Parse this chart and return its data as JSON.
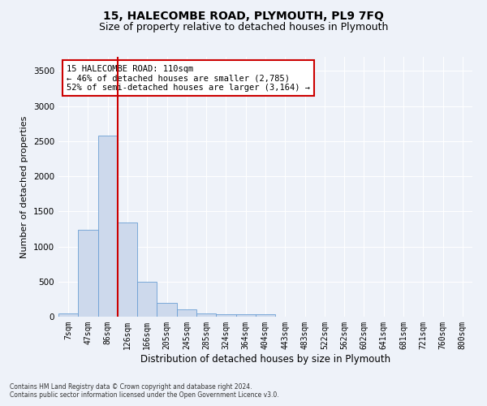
{
  "title": "15, HALECOMBE ROAD, PLYMOUTH, PL9 7FQ",
  "subtitle": "Size of property relative to detached houses in Plymouth",
  "xlabel": "Distribution of detached houses by size in Plymouth",
  "ylabel": "Number of detached properties",
  "bar_labels": [
    "7sqm",
    "47sqm",
    "86sqm",
    "126sqm",
    "166sqm",
    "205sqm",
    "245sqm",
    "285sqm",
    "324sqm",
    "364sqm",
    "404sqm",
    "443sqm",
    "483sqm",
    "522sqm",
    "562sqm",
    "602sqm",
    "641sqm",
    "681sqm",
    "721sqm",
    "760sqm",
    "800sqm"
  ],
  "bar_values": [
    50,
    1240,
    2580,
    1340,
    500,
    195,
    105,
    45,
    40,
    40,
    35,
    0,
    0,
    0,
    0,
    0,
    0,
    0,
    0,
    0,
    0
  ],
  "bar_color": "#cdd9ec",
  "bar_edge_color": "#6b9fd4",
  "vline_color": "#cc0000",
  "vline_pos": 2.5,
  "annotation_text": "15 HALECOMBE ROAD: 110sqm\n← 46% of detached houses are smaller (2,785)\n52% of semi-detached houses are larger (3,164) →",
  "annotation_box_color": "#cc0000",
  "ylim": [
    0,
    3700
  ],
  "yticks": [
    0,
    500,
    1000,
    1500,
    2000,
    2500,
    3000,
    3500
  ],
  "footnote1": "Contains HM Land Registry data © Crown copyright and database right 2024.",
  "footnote2": "Contains public sector information licensed under the Open Government Licence v3.0.",
  "background_color": "#eef2f9",
  "grid_color": "#ffffff",
  "title_fontsize": 10,
  "subtitle_fontsize": 9,
  "ylabel_fontsize": 8,
  "xlabel_fontsize": 8.5,
  "tick_fontsize": 7,
  "annot_fontsize": 7.5,
  "footnote_fontsize": 5.5
}
